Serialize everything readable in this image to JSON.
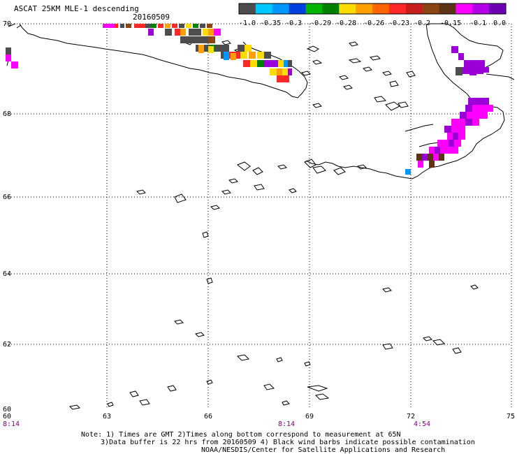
{
  "header": {
    "title": "ASCAT 25KM MLE-1 descending",
    "date": "20160509"
  },
  "colorbar": {
    "colors": [
      "#4d4d4d",
      "#00c8ff",
      "#0096ff",
      "#0040e0",
      "#00b400",
      "#008000",
      "#ffdc00",
      "#ffa000",
      "#ff6400",
      "#ff2828",
      "#c81e1e",
      "#8b4513",
      "#5c3317",
      "#ff00ff",
      "#b400e6",
      "#6e00b4"
    ],
    "labels": [
      "-1.0",
      "-0.35",
      "-0.3",
      "-0.29",
      "-0.28",
      "-0.26",
      "-0.23",
      "-0.2",
      "-0.15",
      "-0.1",
      "0.0"
    ]
  },
  "axes": {
    "lat_labels": [
      "70",
      "68",
      "66",
      "64",
      "62",
      "60"
    ],
    "lon_labels": [
      "60",
      "63",
      "66",
      "69",
      "72",
      "75"
    ],
    "time_labels": [
      "8:14",
      "8:14",
      "4:54"
    ]
  },
  "footer": {
    "line1": "Note: 1) Times are GMT 2)Times along bottom correspond to measurement at 65N",
    "line2": "3)Data buffer is 22 hrs from 20160509 4) Black wind barbs indicate possible contamination",
    "line3": "NOAA/NESDIS/Center for Satellite Applications and Research"
  }
}
